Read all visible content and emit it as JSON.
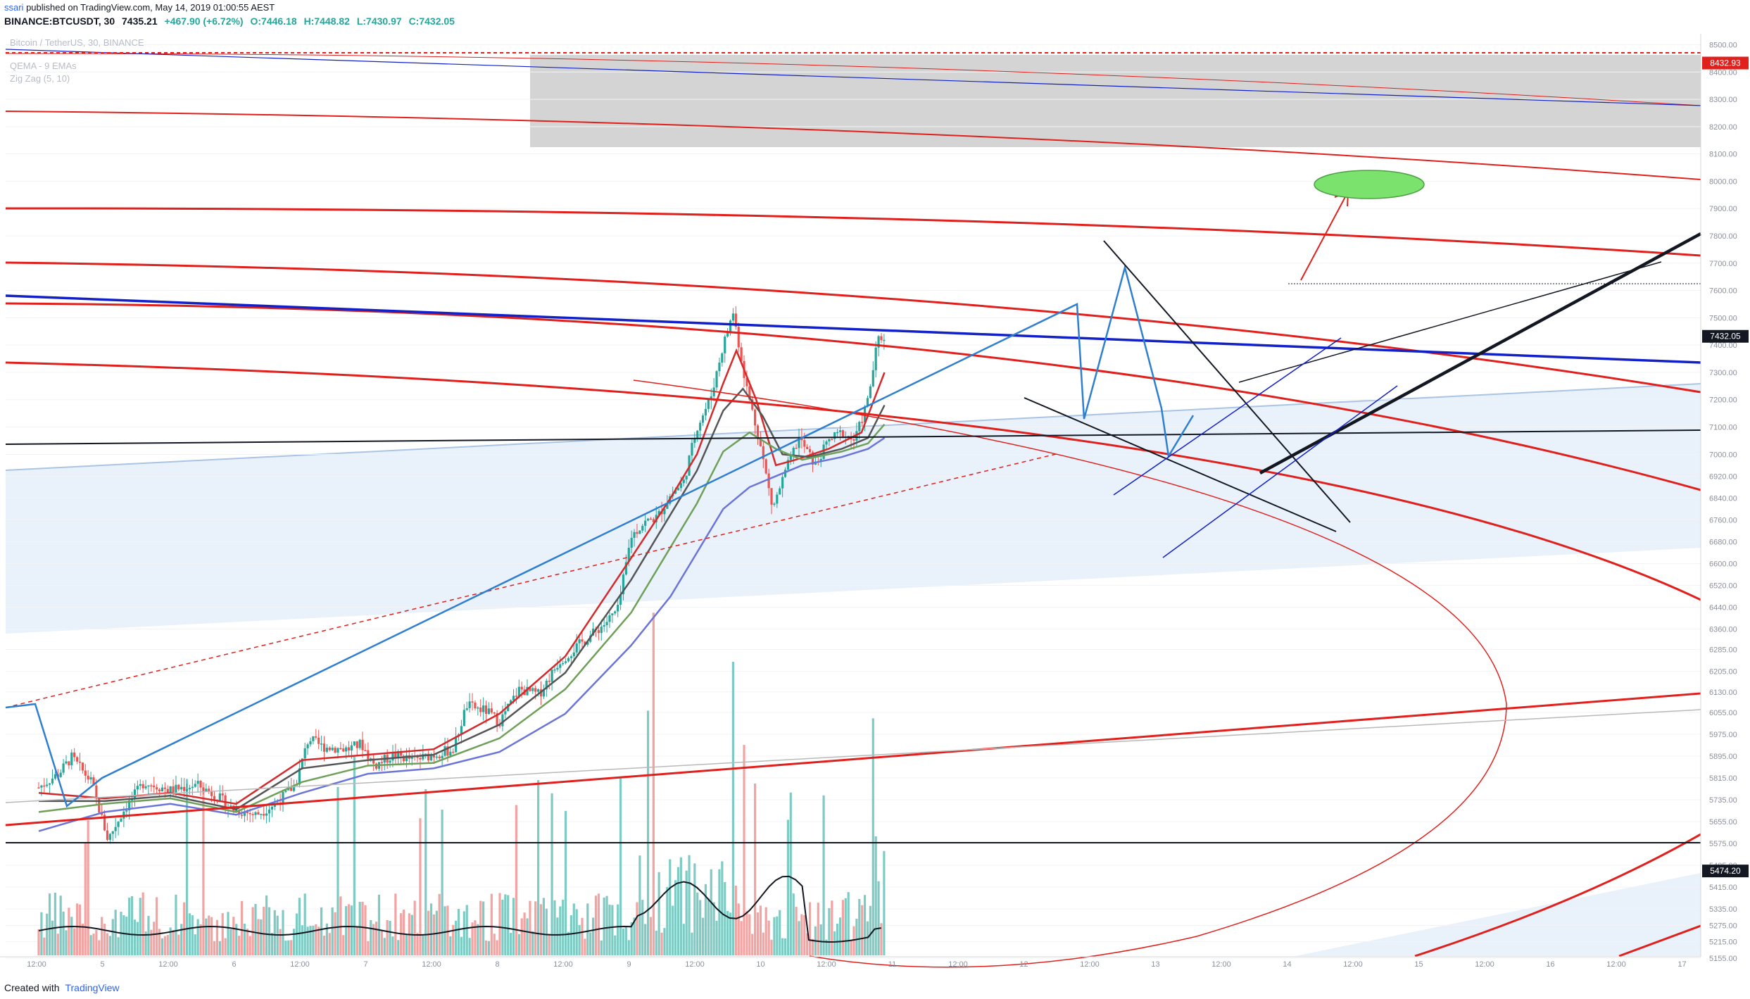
{
  "header": {
    "user": "ssari",
    "published": "published on TradingView.com, May 14, 2019 01:00:55 AEST",
    "symbol": "BINANCE:BTCUSDT, 30",
    "last": "7435.21",
    "change": "+467.90 (+6.72%)",
    "open": "O:7446.18",
    "high": "H:7448.82",
    "low": "L:7430.97",
    "close": "C:7432.05"
  },
  "legend": {
    "title": "Bitcoin / TetherUS, 30, BINANCE",
    "study1": "QEMA - 9 EMAs",
    "study2": "Zig Zag (5, 10)"
  },
  "footer": {
    "created": "Created with",
    "brand": "TradingView"
  },
  "colors": {
    "up": "#26a69a",
    "down": "#ef5350",
    "vol_up": "#7fcbc4",
    "vol_down": "#f3a3a1",
    "red_channel": "#e0201c",
    "blue_line": "#1220c8",
    "zigzag": "#2f7fd1",
    "band_fill": "#e9f1fb",
    "resistance_box": "#d4d4d4",
    "target": "#7be36d",
    "price_label": "#131722",
    "resistance_label": "#e0201c"
  },
  "chart_data": {
    "type": "candlestick",
    "ylim": [
      5160,
      8540
    ],
    "y_ticks": [
      8500,
      8400,
      8300,
      8200,
      8100,
      8000,
      7900,
      7800,
      7700,
      7600,
      7500,
      7400,
      7300,
      7200,
      7100,
      7000,
      6920,
      6840,
      6760,
      6680,
      6600,
      6520,
      6440,
      6360,
      6285,
      6205,
      6130,
      6055,
      5975,
      5895,
      5815,
      5735,
      5655,
      5575,
      5495,
      5415,
      5335,
      5275,
      5215,
      5155
    ],
    "x_ticks": [
      "12:00",
      "5",
      "12:00",
      "6",
      "12:00",
      "7",
      "12:00",
      "8",
      "12:00",
      "9",
      "12:00",
      "10",
      "12:00",
      "11",
      "12:00",
      "12",
      "12:00",
      "13",
      "12:00",
      "14",
      "12:00",
      "15",
      "12:00",
      "16",
      "12:00",
      "17"
    ],
    "price_labels": [
      {
        "value": 8432.93,
        "text": "8432.93",
        "kind": "resistance"
      },
      {
        "value": 7432.05,
        "text": "7432.05",
        "kind": "last"
      },
      {
        "value": 5474.2,
        "text": "5474.20",
        "kind": "support"
      }
    ],
    "price_path": [
      [
        0,
        5780
      ],
      [
        0.3,
        5830
      ],
      [
        0.5,
        5890
      ],
      [
        0.8,
        5800
      ],
      [
        1.05,
        5590
      ],
      [
        1.3,
        5700
      ],
      [
        1.6,
        5800
      ],
      [
        2,
        5770
      ],
      [
        2.4,
        5790
      ],
      [
        2.7,
        5750
      ],
      [
        2.95,
        5700
      ],
      [
        3.3,
        5680
      ],
      [
        3.6,
        5720
      ],
      [
        3.9,
        5790
      ],
      [
        4.1,
        5960
      ],
      [
        4.3,
        5930
      ],
      [
        4.7,
        5920
      ],
      [
        4.9,
        5940
      ],
      [
        5.1,
        5860
      ],
      [
        5.4,
        5900
      ],
      [
        5.7,
        5880
      ],
      [
        6,
        5900
      ],
      [
        6.3,
        5920
      ],
      [
        6.5,
        6080
      ],
      [
        6.8,
        6060
      ],
      [
        7,
        6020
      ],
      [
        7.3,
        6140
      ],
      [
        7.6,
        6120
      ],
      [
        7.9,
        6240
      ],
      [
        8.2,
        6300
      ],
      [
        8.4,
        6340
      ],
      [
        8.6,
        6380
      ],
      [
        8.8,
        6430
      ],
      [
        9,
        6700
      ],
      [
        9.2,
        6750
      ],
      [
        9.4,
        6770
      ],
      [
        9.6,
        6850
      ],
      [
        9.8,
        6900
      ],
      [
        10,
        7100
      ],
      [
        10.2,
        7200
      ],
      [
        10.4,
        7400
      ],
      [
        10.55,
        7520
      ],
      [
        10.75,
        7250
      ],
      [
        10.95,
        7050
      ],
      [
        11.15,
        6800
      ],
      [
        11.35,
        6940
      ],
      [
        11.55,
        7060
      ],
      [
        11.8,
        6960
      ],
      [
        12,
        7050
      ],
      [
        12.2,
        7080
      ],
      [
        12.4,
        7050
      ],
      [
        12.6,
        7200
      ],
      [
        12.75,
        7420
      ],
      [
        12.85,
        7432
      ]
    ],
    "ema_series": [
      {
        "color": "#d6292b",
        "path": [
          [
            0,
            5760
          ],
          [
            1,
            5740
          ],
          [
            2,
            5760
          ],
          [
            3,
            5720
          ],
          [
            4,
            5880
          ],
          [
            5,
            5900
          ],
          [
            6,
            5920
          ],
          [
            7,
            6050
          ],
          [
            8,
            6260
          ],
          [
            9,
            6620
          ],
          [
            9.6,
            6840
          ],
          [
            10,
            7000
          ],
          [
            10.4,
            7260
          ],
          [
            10.6,
            7380
          ],
          [
            10.9,
            7200
          ],
          [
            11.2,
            6960
          ],
          [
            11.5,
            6980
          ],
          [
            12,
            7020
          ],
          [
            12.5,
            7080
          ],
          [
            12.85,
            7300
          ]
        ]
      },
      {
        "color": "#555555",
        "path": [
          [
            0,
            5730
          ],
          [
            1,
            5730
          ],
          [
            2,
            5750
          ],
          [
            3,
            5700
          ],
          [
            4,
            5850
          ],
          [
            5,
            5880
          ],
          [
            6,
            5900
          ],
          [
            7,
            6010
          ],
          [
            8,
            6200
          ],
          [
            9,
            6540
          ],
          [
            9.6,
            6780
          ],
          [
            10,
            6940
          ],
          [
            10.4,
            7160
          ],
          [
            10.7,
            7240
          ],
          [
            11,
            7140
          ],
          [
            11.3,
            7000
          ],
          [
            11.7,
            6990
          ],
          [
            12.2,
            7020
          ],
          [
            12.6,
            7060
          ],
          [
            12.85,
            7180
          ]
        ]
      },
      {
        "color": "#6fa05a",
        "path": [
          [
            0,
            5690
          ],
          [
            1,
            5720
          ],
          [
            2,
            5740
          ],
          [
            3,
            5690
          ],
          [
            4,
            5800
          ],
          [
            5,
            5860
          ],
          [
            6,
            5870
          ],
          [
            7,
            5960
          ],
          [
            8,
            6140
          ],
          [
            9,
            6420
          ],
          [
            9.6,
            6660
          ],
          [
            10,
            6820
          ],
          [
            10.4,
            7010
          ],
          [
            10.8,
            7080
          ],
          [
            11.2,
            7020
          ],
          [
            11.6,
            6980
          ],
          [
            12.2,
            7010
          ],
          [
            12.6,
            7040
          ],
          [
            12.85,
            7110
          ]
        ]
      },
      {
        "color": "#6b74d8",
        "path": [
          [
            0,
            5620
          ],
          [
            1,
            5690
          ],
          [
            2,
            5720
          ],
          [
            3,
            5680
          ],
          [
            4,
            5760
          ],
          [
            5,
            5830
          ],
          [
            6,
            5850
          ],
          [
            7,
            5910
          ],
          [
            8,
            6050
          ],
          [
            9,
            6300
          ],
          [
            9.6,
            6480
          ],
          [
            10,
            6640
          ],
          [
            10.4,
            6800
          ],
          [
            10.8,
            6880
          ],
          [
            11.2,
            6920
          ],
          [
            11.6,
            6960
          ],
          [
            12.2,
            6990
          ],
          [
            12.6,
            7020
          ],
          [
            12.85,
            7060
          ]
        ]
      }
    ]
  }
}
